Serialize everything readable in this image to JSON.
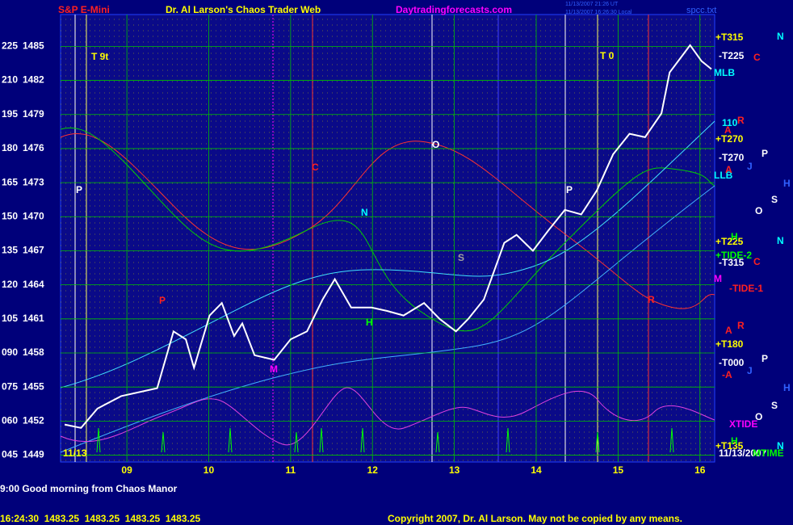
{
  "header": {
    "symbol": "S&P E-Mini",
    "site": "Dr. Al Larson's Chaos Trader Web",
    "url": "Daytradingforecasts.com",
    "time_ut": "11/13/2007 21:26 UT",
    "time_local": "11/13/2007 16:26:30 Local",
    "file": "spcc.txt"
  },
  "chart_data": {
    "type": "line",
    "color": "#ffffff",
    "x": [
      8.24,
      8.44,
      8.64,
      8.93,
      9.37,
      9.57,
      9.72,
      9.82,
      10.01,
      10.16,
      10.31,
      10.41,
      10.56,
      10.8,
      11.0,
      11.2,
      11.39,
      11.54,
      11.74,
      11.99,
      12.18,
      12.38,
      12.63,
      12.82,
      13.02,
      13.17,
      13.36,
      13.61,
      13.76,
      13.96,
      14.15,
      14.35,
      14.55,
      14.74,
      14.94,
      15.14,
      15.33,
      15.53,
      15.63,
      15.88,
      16.02,
      16.14
    ],
    "values": [
      1451.7,
      1451.4,
      1453.1,
      1454.2,
      1454.9,
      1459.9,
      1459.2,
      1456.7,
      1461.3,
      1462.4,
      1459.5,
      1460.6,
      1457.8,
      1457.4,
      1459.2,
      1459.9,
      1462.7,
      1464.5,
      1462.0,
      1462.0,
      1461.7,
      1461.3,
      1462.4,
      1461.0,
      1459.9,
      1461.0,
      1462.7,
      1467.7,
      1468.4,
      1467.0,
      1468.8,
      1470.6,
      1470.2,
      1472.3,
      1475.5,
      1477.3,
      1477.0,
      1479.1,
      1482.7,
      1485.1,
      1483.7,
      1483.0
    ],
    "xlim": [
      8.19,
      16.18
    ],
    "xticks": [
      {
        "value": 9,
        "label": "09"
      },
      10,
      11,
      12,
      13,
      14,
      15,
      16
    ],
    "ylim": [
      1448.4,
      1487.8
    ],
    "yticks": [
      1449,
      1452,
      1455,
      1458,
      1461,
      1464,
      1467,
      1470,
      1473,
      1476,
      1479,
      1482,
      1485
    ],
    "y2lim": [
      42,
      239
    ],
    "y2ticks": [
      {
        "value": 45,
        "label": "045"
      },
      {
        "value": 60,
        "label": "060"
      },
      {
        "value": 75,
        "label": "075"
      },
      {
        "value": 90,
        "label": "090"
      },
      105,
      120,
      135,
      150,
      165,
      180,
      195,
      210,
      225
    ],
    "grid": true
  },
  "annotations": [
    "+T315",
    "-T225",
    "MLB",
    "110",
    "+T270",
    "-T270",
    "LLB",
    "+T225",
    "+TIDE-2",
    "-T315",
    "M",
    "-TIDE-1",
    "+T180",
    "-T000",
    "-A",
    "XTIDE",
    "+T135",
    "11/13/2007",
    "MTIME",
    "N",
    "C",
    "R",
    "A",
    "P",
    "A",
    "J",
    "H",
    "S",
    "O",
    "H",
    "N",
    "C",
    "R",
    "A",
    "P",
    "J",
    "H",
    "S",
    "O",
    "H",
    "N",
    "T 9t",
    "P",
    "C",
    "O",
    "N",
    "P",
    "H",
    "S",
    "P",
    "T 0",
    "R",
    "M",
    "11/13"
  ],
  "footer": {
    "message": "9:00 Good morning from Chaos Manor",
    "quote": "16:24:30  1483.25  1483.25  1483.25  1483.25",
    "copyright": "Copyright 2007, Dr. Al Larson. May not be copied by any means."
  }
}
